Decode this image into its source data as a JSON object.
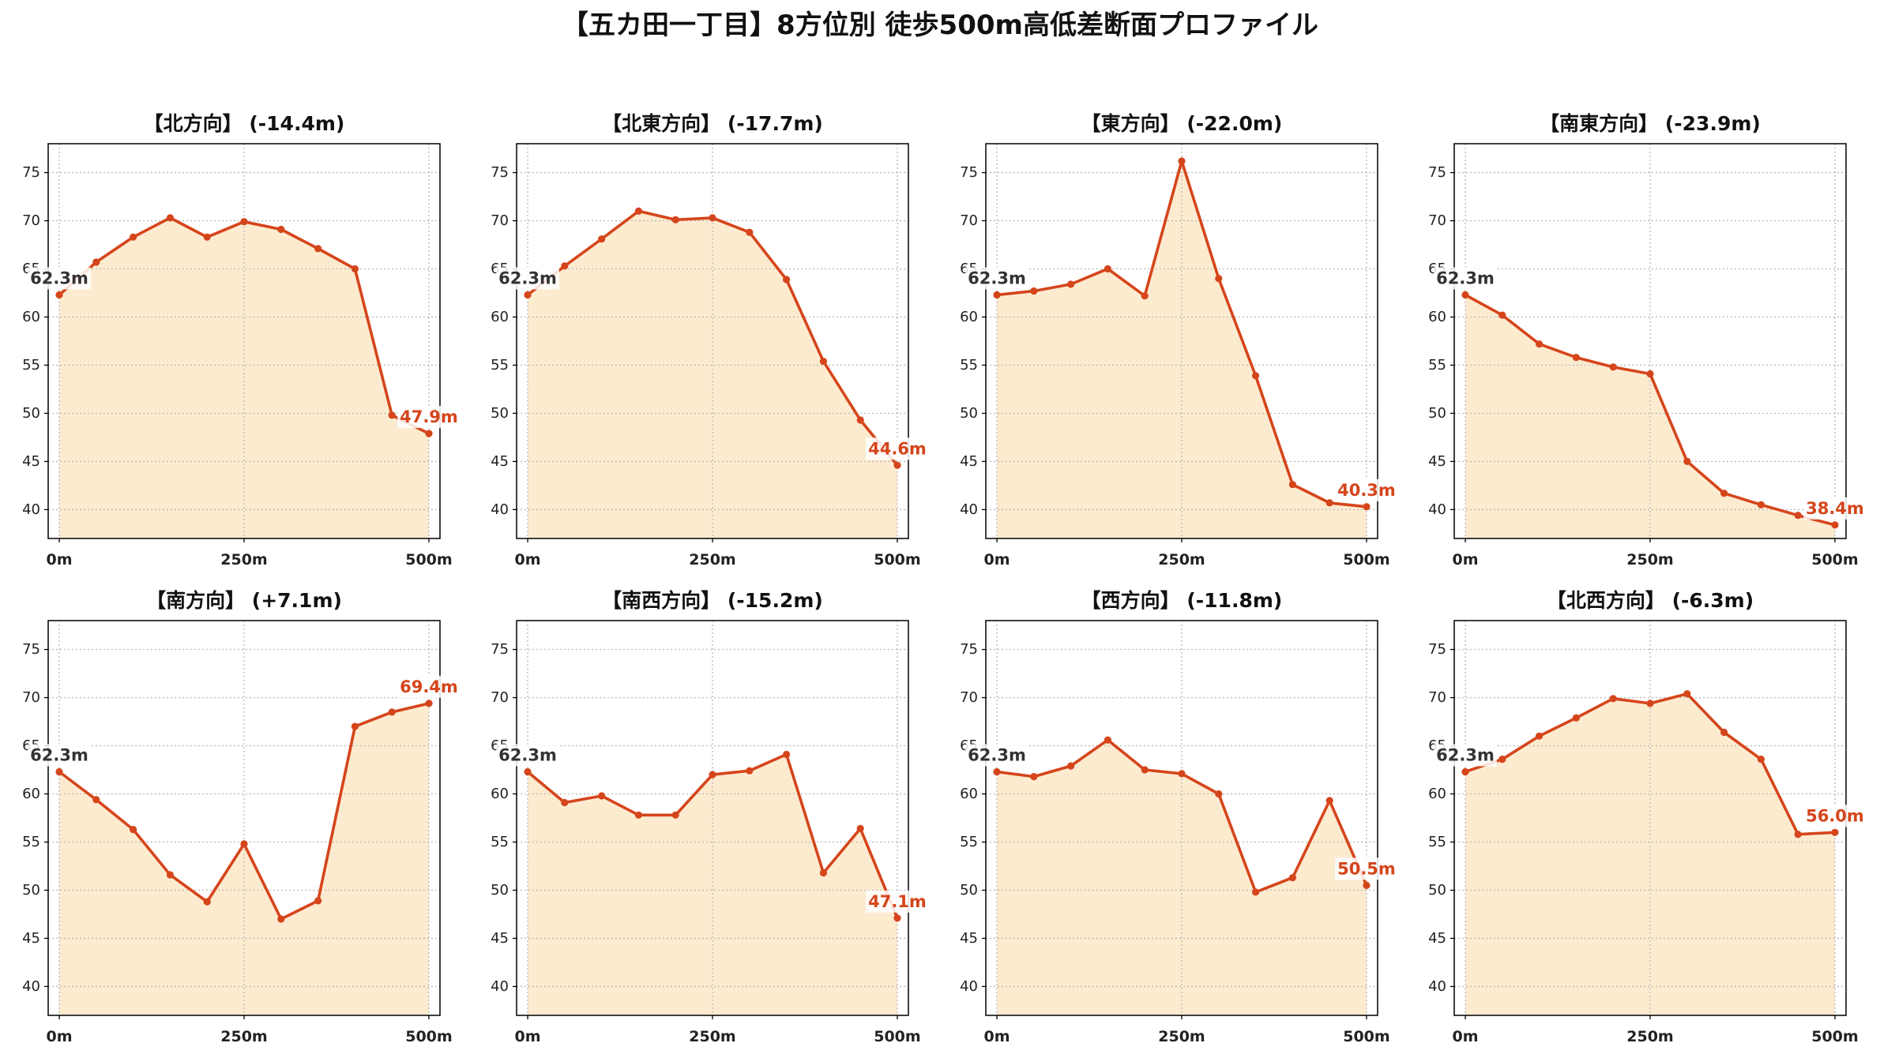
{
  "figure": {
    "title": "【五カ田一丁目】8方位別 徒歩500m高低差断面プロファイル"
  },
  "colors": {
    "line": "#d5451b",
    "fill": "#f39c12",
    "start_label": "#333333",
    "end_label": "#d5451b",
    "grid": "#b8b8b8"
  },
  "chart_data": [
    {
      "type": "line",
      "title": "【北方向】 (-14.4m)",
      "x": [
        0,
        50,
        100,
        150,
        200,
        250,
        300,
        350,
        400,
        450,
        500
      ],
      "values": [
        62.3,
        65.7,
        68.3,
        70.3,
        68.3,
        69.9,
        69.1,
        67.1,
        65.0,
        49.8,
        47.9
      ],
      "start_label": "62.3m",
      "end_label": "47.9m",
      "xticks": [
        0,
        250,
        500
      ],
      "xtick_labels": [
        "0m",
        "250m",
        "500m"
      ],
      "yticks": [
        40,
        45,
        50,
        55,
        60,
        65,
        70,
        75
      ],
      "xlim": [
        -15,
        515
      ],
      "ylim": [
        37,
        78
      ],
      "grid": true
    },
    {
      "type": "line",
      "title": "【北東方向】 (-17.7m)",
      "x": [
        0,
        50,
        100,
        150,
        200,
        250,
        300,
        350,
        400,
        450,
        500
      ],
      "values": [
        62.3,
        65.3,
        68.1,
        71.0,
        70.1,
        70.3,
        68.8,
        63.9,
        55.4,
        49.3,
        44.6
      ],
      "start_label": "62.3m",
      "end_label": "44.6m",
      "xticks": [
        0,
        250,
        500
      ],
      "xtick_labels": [
        "0m",
        "250m",
        "500m"
      ],
      "yticks": [
        40,
        45,
        50,
        55,
        60,
        65,
        70,
        75
      ],
      "xlim": [
        -15,
        515
      ],
      "ylim": [
        37,
        78
      ],
      "grid": true
    },
    {
      "type": "line",
      "title": "【東方向】 (-22.0m)",
      "x": [
        0,
        50,
        100,
        150,
        200,
        250,
        300,
        350,
        400,
        450,
        500
      ],
      "values": [
        62.3,
        62.7,
        63.4,
        65.0,
        62.2,
        76.2,
        64.0,
        53.9,
        42.6,
        40.7,
        40.3
      ],
      "start_label": "62.3m",
      "end_label": "40.3m",
      "xticks": [
        0,
        250,
        500
      ],
      "xtick_labels": [
        "0m",
        "250m",
        "500m"
      ],
      "yticks": [
        40,
        45,
        50,
        55,
        60,
        65,
        70,
        75
      ],
      "xlim": [
        -15,
        515
      ],
      "ylim": [
        37,
        78
      ],
      "grid": true
    },
    {
      "type": "line",
      "title": "【南東方向】 (-23.9m)",
      "x": [
        0,
        50,
        100,
        150,
        200,
        250,
        300,
        350,
        400,
        450,
        500
      ],
      "values": [
        62.3,
        60.2,
        57.2,
        55.8,
        54.8,
        54.1,
        45.0,
        41.7,
        40.5,
        39.4,
        38.4
      ],
      "start_label": "62.3m",
      "end_label": "38.4m",
      "xticks": [
        0,
        250,
        500
      ],
      "xtick_labels": [
        "0m",
        "250m",
        "500m"
      ],
      "yticks": [
        40,
        45,
        50,
        55,
        60,
        65,
        70,
        75
      ],
      "xlim": [
        -15,
        515
      ],
      "ylim": [
        37,
        78
      ],
      "grid": true
    },
    {
      "type": "line",
      "title": "【南方向】 (+7.1m)",
      "x": [
        0,
        50,
        100,
        150,
        200,
        250,
        300,
        350,
        400,
        450,
        500
      ],
      "values": [
        62.3,
        59.4,
        56.3,
        51.6,
        48.8,
        54.8,
        47.0,
        48.9,
        67.0,
        68.5,
        69.4
      ],
      "start_label": "62.3m",
      "end_label": "69.4m",
      "xticks": [
        0,
        250,
        500
      ],
      "xtick_labels": [
        "0m",
        "250m",
        "500m"
      ],
      "yticks": [
        40,
        45,
        50,
        55,
        60,
        65,
        70,
        75
      ],
      "xlim": [
        -15,
        515
      ],
      "ylim": [
        37,
        78
      ],
      "grid": true
    },
    {
      "type": "line",
      "title": "【南西方向】 (-15.2m)",
      "x": [
        0,
        50,
        100,
        150,
        200,
        250,
        300,
        350,
        400,
        450,
        500
      ],
      "values": [
        62.3,
        59.1,
        59.8,
        57.8,
        57.8,
        62.0,
        62.4,
        64.1,
        51.8,
        56.4,
        47.1
      ],
      "start_label": "62.3m",
      "end_label": "47.1m",
      "xticks": [
        0,
        250,
        500
      ],
      "xtick_labels": [
        "0m",
        "250m",
        "500m"
      ],
      "yticks": [
        40,
        45,
        50,
        55,
        60,
        65,
        70,
        75
      ],
      "xlim": [
        -15,
        515
      ],
      "ylim": [
        37,
        78
      ],
      "grid": true
    },
    {
      "type": "line",
      "title": "【西方向】 (-11.8m)",
      "x": [
        0,
        50,
        100,
        150,
        200,
        250,
        300,
        350,
        400,
        450,
        500
      ],
      "values": [
        62.3,
        61.8,
        62.9,
        65.6,
        62.5,
        62.1,
        60.0,
        49.8,
        51.3,
        59.3,
        50.5
      ],
      "start_label": "62.3m",
      "end_label": "50.5m",
      "xticks": [
        0,
        250,
        500
      ],
      "xtick_labels": [
        "0m",
        "250m",
        "500m"
      ],
      "yticks": [
        40,
        45,
        50,
        55,
        60,
        65,
        70,
        75
      ],
      "xlim": [
        -15,
        515
      ],
      "ylim": [
        37,
        78
      ],
      "grid": true
    },
    {
      "type": "line",
      "title": "【北西方向】 (-6.3m)",
      "x": [
        0,
        50,
        100,
        150,
        200,
        250,
        300,
        350,
        400,
        450,
        500
      ],
      "values": [
        62.3,
        63.6,
        66.0,
        67.9,
        69.9,
        69.4,
        70.4,
        66.4,
        63.6,
        55.8,
        56.0
      ],
      "start_label": "62.3m",
      "end_label": "56.0m",
      "xticks": [
        0,
        250,
        500
      ],
      "xtick_labels": [
        "0m",
        "250m",
        "500m"
      ],
      "yticks": [
        40,
        45,
        50,
        55,
        60,
        65,
        70,
        75
      ],
      "xlim": [
        -15,
        515
      ],
      "ylim": [
        37,
        78
      ],
      "grid": true
    }
  ]
}
